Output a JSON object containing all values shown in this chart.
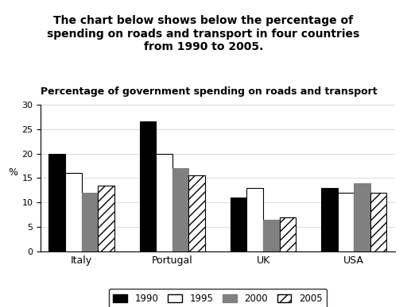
{
  "title": "The chart below shows below the percentage of\nspending on roads and transport in four countries\nfrom 1990 to 2005.",
  "subtitle": "Percentage of government spending on roads and transport",
  "countries": [
    "Italy",
    "Portugal",
    "UK",
    "USA"
  ],
  "years": [
    "1990",
    "1995",
    "2000",
    "2005"
  ],
  "values": {
    "Italy": [
      20,
      16,
      12,
      13.5
    ],
    "Portugal": [
      26.5,
      20,
      17,
      15.5
    ],
    "UK": [
      11,
      13,
      6.5,
      7
    ],
    "USA": [
      13,
      12,
      14,
      12
    ]
  },
  "bar_colors": [
    "#000000",
    "#ffffff",
    "#808080",
    "hatch_white"
  ],
  "bar_edge_colors": [
    "#000000",
    "#000000",
    "#000000",
    "#000000"
  ],
  "ylim": [
    0,
    30
  ],
  "yticks": [
    0,
    5,
    10,
    15,
    20,
    25,
    30
  ],
  "ylabel": "%",
  "background_color": "#ffffff",
  "hatch_pattern": "///",
  "title_fontsize": 10,
  "subtitle_fontsize": 9,
  "legend_labels": [
    "1990",
    "1995",
    "2000",
    "2005"
  ]
}
